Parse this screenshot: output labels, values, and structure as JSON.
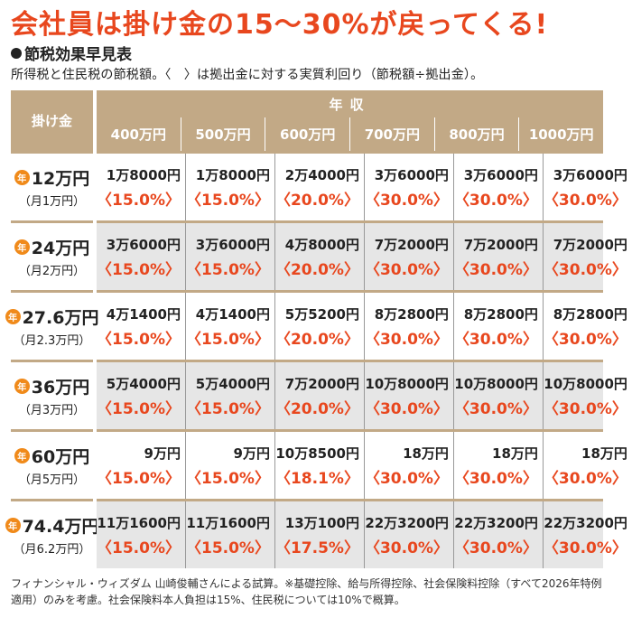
{
  "title": "会社員は掛け金の15～30%が戻ってくる!",
  "subtitle": "節税効果早見表",
  "note": "所得税と住民税の節税額。〈　〉は拠出金に対する実質利回り（節税額÷拠出金）。",
  "table": {
    "corner_label": "掛け金",
    "income_header": "年収",
    "incomes": [
      "400万円",
      "500万円",
      "600万円",
      "700万円",
      "800万円",
      "1000万円"
    ],
    "rows": [
      {
        "badge": "年",
        "amount": "12万円",
        "monthly": "（月1万円）",
        "cells": [
          {
            "v": "1万8000円",
            "r": "〈15.0%〉"
          },
          {
            "v": "1万8000円",
            "r": "〈15.0%〉"
          },
          {
            "v": "2万4000円",
            "r": "〈20.0%〉"
          },
          {
            "v": "3万6000円",
            "r": "〈30.0%〉"
          },
          {
            "v": "3万6000円",
            "r": "〈30.0%〉"
          },
          {
            "v": "3万6000円",
            "r": "〈30.0%〉"
          }
        ]
      },
      {
        "badge": "年",
        "amount": "24万円",
        "monthly": "（月2万円）",
        "cells": [
          {
            "v": "3万6000円",
            "r": "〈15.0%〉"
          },
          {
            "v": "3万6000円",
            "r": "〈15.0%〉"
          },
          {
            "v": "4万8000円",
            "r": "〈20.0%〉"
          },
          {
            "v": "7万2000円",
            "r": "〈30.0%〉"
          },
          {
            "v": "7万2000円",
            "r": "〈30.0%〉"
          },
          {
            "v": "7万2000円",
            "r": "〈30.0%〉"
          }
        ]
      },
      {
        "badge": "年",
        "amount": "27.6万円",
        "monthly": "（月2.3万円）",
        "cells": [
          {
            "v": "4万1400円",
            "r": "〈15.0%〉"
          },
          {
            "v": "4万1400円",
            "r": "〈15.0%〉"
          },
          {
            "v": "5万5200円",
            "r": "〈20.0%〉"
          },
          {
            "v": "8万2800円",
            "r": "〈30.0%〉"
          },
          {
            "v": "8万2800円",
            "r": "〈30.0%〉"
          },
          {
            "v": "8万2800円",
            "r": "〈30.0%〉"
          }
        ]
      },
      {
        "badge": "年",
        "amount": "36万円",
        "monthly": "（月3万円）",
        "cells": [
          {
            "v": "5万4000円",
            "r": "〈15.0%〉"
          },
          {
            "v": "5万4000円",
            "r": "〈15.0%〉"
          },
          {
            "v": "7万2000円",
            "r": "〈20.0%〉"
          },
          {
            "v": "10万8000円",
            "r": "〈30.0%〉"
          },
          {
            "v": "10万8000円",
            "r": "〈30.0%〉"
          },
          {
            "v": "10万8000円",
            "r": "〈30.0%〉"
          }
        ]
      },
      {
        "badge": "年",
        "amount": "60万円",
        "monthly": "（月5万円）",
        "cells": [
          {
            "v": "9万円",
            "r": "〈15.0%〉"
          },
          {
            "v": "9万円",
            "r": "〈15.0%〉"
          },
          {
            "v": "10万8500円",
            "r": "〈18.1%〉"
          },
          {
            "v": "18万円",
            "r": "〈30.0%〉"
          },
          {
            "v": "18万円",
            "r": "〈30.0%〉"
          },
          {
            "v": "18万円",
            "r": "〈30.0%〉"
          }
        ]
      },
      {
        "badge": "年",
        "amount": "74.4万円",
        "monthly": "（月6.2万円）",
        "cells": [
          {
            "v": "11万1600円",
            "r": "〈15.0%〉"
          },
          {
            "v": "11万1600円",
            "r": "〈15.0%〉"
          },
          {
            "v": "13万100円",
            "r": "〈17.5%〉"
          },
          {
            "v": "22万3200円",
            "r": "〈30.0%〉"
          },
          {
            "v": "22万3200円",
            "r": "〈30.0%〉"
          },
          {
            "v": "22万3200円",
            "r": "〈30.0%〉"
          }
        ]
      }
    ]
  },
  "footer": "フィナンシャル・ウィズダム 山崎俊輔さんによる試算。※基礎控除、給与所得控除、社会保険料控除（すべて2026年特例適用）のみを考慮。社会保険料本人負担は15%、住民税については10%で概算。",
  "colors": {
    "accent": "#e8471e",
    "header": "#c2a986",
    "badge": "#f08a1a",
    "shade": "#e6e6e6"
  }
}
